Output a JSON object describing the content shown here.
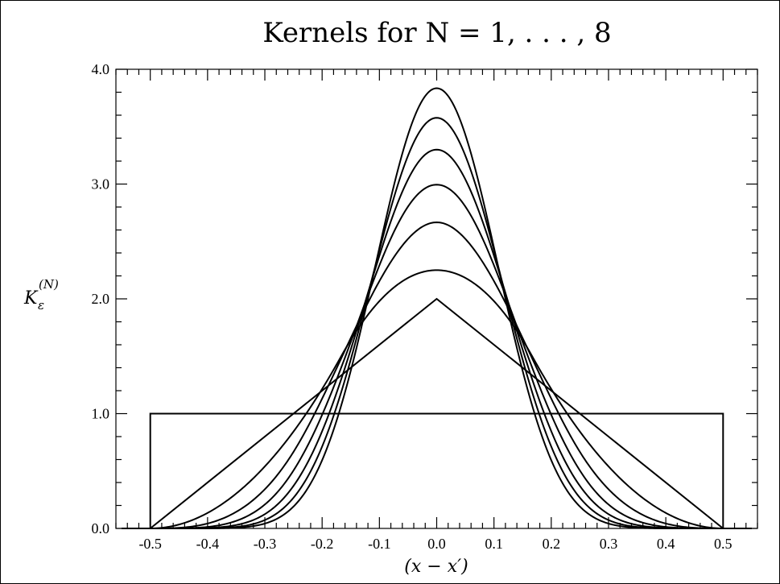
{
  "chart_data": {
    "type": "line",
    "title": "Kernels for N = 1, . . . , 8",
    "xlabel": "(x − x′)",
    "ylabel": {
      "base": "K",
      "sub": "ε",
      "sup": "(N)"
    },
    "xlim": [
      -0.56,
      0.56
    ],
    "ylim": [
      0.0,
      4.0
    ],
    "x_ticks": [
      -0.5,
      -0.4,
      -0.3,
      -0.2,
      -0.1,
      0.0,
      0.1,
      0.2,
      0.3,
      0.4,
      0.5
    ],
    "x_tick_labels": [
      "-0.5",
      "-0.4",
      "-0.3",
      "-0.2",
      "-0.1",
      "0.0",
      "0.1",
      "0.2",
      "0.3",
      "0.4",
      "0.5"
    ],
    "y_ticks": [
      0.0,
      1.0,
      2.0,
      3.0,
      4.0
    ],
    "y_tick_labels": [
      "0.0",
      "1.0",
      "2.0",
      "3.0",
      "4.0"
    ],
    "series": [
      {
        "N": 1,
        "x": [
          -0.55,
          -0.5,
          -0.5,
          0.5,
          0.5,
          0.55
        ],
        "y": [
          0.0,
          0.0,
          1.0,
          1.0,
          0.0,
          0.0
        ]
      },
      {
        "N": 2,
        "x": [
          -0.55,
          -0.5,
          0.0,
          0.5,
          0.55
        ],
        "y": [
          0.0,
          0.0,
          2.0,
          0.0,
          0.0
        ]
      },
      {
        "N": 3,
        "peak": 2.25
      },
      {
        "N": 4,
        "peak": 2.67
      },
      {
        "N": 5,
        "peak": 3.0
      },
      {
        "N": 6,
        "peak": 3.3
      },
      {
        "N": 7,
        "peak": 3.58
      },
      {
        "N": 8,
        "peak": 3.83
      }
    ],
    "grid": false,
    "legend": "none"
  }
}
